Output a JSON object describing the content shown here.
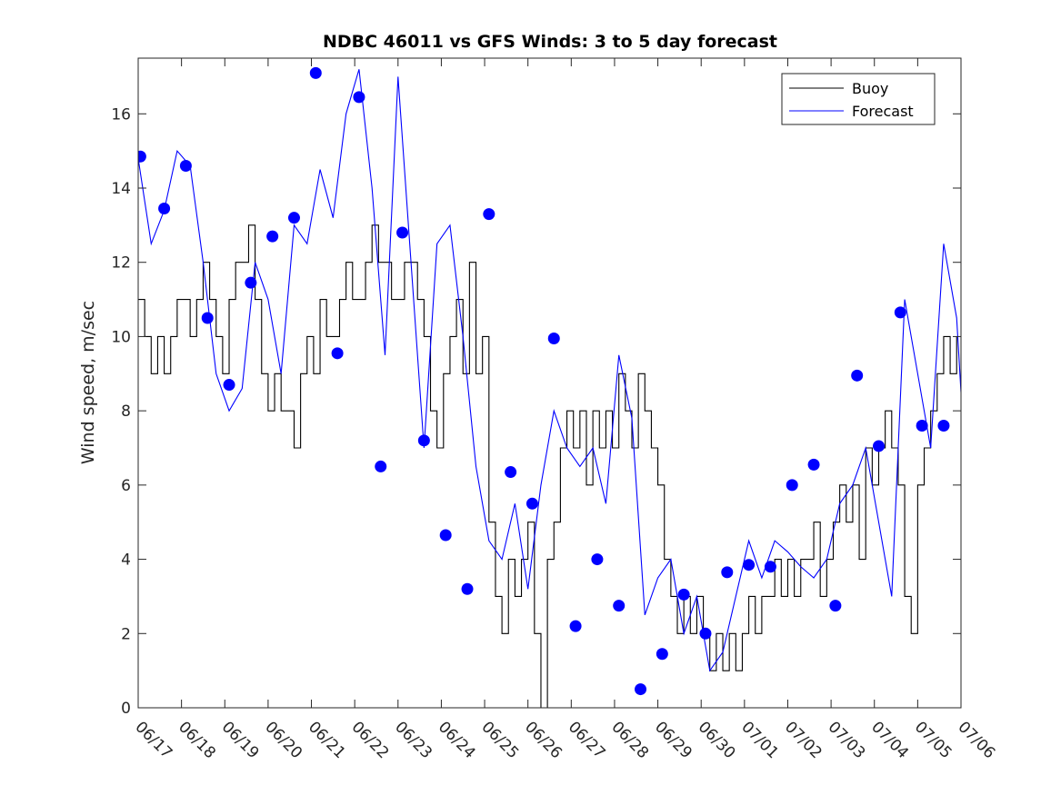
{
  "chart_data": {
    "type": "line",
    "title": "NDBC 46011 vs GFS Winds: 3 to 5 day forecast",
    "xlabel": "",
    "ylabel": "Wind speed, m/sec",
    "ylim": [
      0,
      17.5
    ],
    "yticks": [
      0,
      2,
      4,
      6,
      8,
      10,
      12,
      14,
      16
    ],
    "x_type": "date (mm/dd)",
    "xlim": [
      "06/17",
      "07/06"
    ],
    "xticks": [
      "06/17",
      "06/18",
      "06/19",
      "06/20",
      "06/21",
      "06/22",
      "06/23",
      "06/24",
      "06/25",
      "06/26",
      "06/27",
      "06/28",
      "06/29",
      "06/30",
      "07/01",
      "07/02",
      "07/03",
      "07/04",
      "07/05",
      "07/06"
    ],
    "legend_position": "top-right",
    "grid": false,
    "colors": {
      "buoy": "#000000",
      "forecast": "#0000ff",
      "axes": "#262626"
    },
    "series": [
      {
        "name": "Buoy",
        "color": "#000000",
        "style": "step-line",
        "x_day_offsets_from_06_17": [
          0,
          0.15,
          0.3,
          0.45,
          0.6,
          0.75,
          0.9,
          1.05,
          1.2,
          1.35,
          1.5,
          1.65,
          1.8,
          1.95,
          2.1,
          2.25,
          2.4,
          2.55,
          2.7,
          2.85,
          3.0,
          3.15,
          3.3,
          3.45,
          3.6,
          3.75,
          3.9,
          4.05,
          4.2,
          4.35,
          4.5,
          4.65,
          4.8,
          4.95,
          5.1,
          5.25,
          5.4,
          5.55,
          5.7,
          5.85,
          6.0,
          6.15,
          6.3,
          6.45,
          6.6,
          6.75,
          6.9,
          7.05,
          7.2,
          7.35,
          7.5,
          7.65,
          7.8,
          7.95,
          8.1,
          8.25,
          8.4,
          8.55,
          8.7,
          8.85,
          9.0,
          9.15,
          9.3,
          9.45,
          9.6,
          9.75,
          9.9,
          10.05,
          10.2,
          10.35,
          10.5,
          10.65,
          10.8,
          10.95,
          11.1,
          11.25,
          11.4,
          11.55,
          11.7,
          11.85,
          12.0,
          12.15,
          12.3,
          12.45,
          12.6,
          12.75,
          12.9,
          13.05,
          13.2,
          13.35,
          13.5,
          13.65,
          13.8,
          13.95,
          14.1,
          14.25,
          14.4,
          14.55,
          14.7,
          14.85,
          15.0,
          15.15,
          15.3,
          15.45,
          15.6,
          15.75,
          15.9,
          16.05,
          16.2,
          16.35,
          16.5,
          16.65,
          16.8,
          16.95,
          17.1,
          17.25,
          17.4,
          17.55,
          17.7,
          17.85,
          18.0,
          18.15,
          18.3,
          18.45,
          18.6,
          18.75,
          18.9
        ],
        "values": [
          11,
          10,
          9,
          10,
          9,
          10,
          11,
          11,
          10,
          11,
          12,
          11,
          10,
          9,
          11,
          12,
          12,
          13,
          11,
          9,
          8,
          9,
          8,
          8,
          7,
          9,
          10,
          9,
          11,
          10,
          10,
          11,
          12,
          11,
          11,
          12,
          13,
          12,
          12,
          11,
          11,
          12,
          12,
          11,
          10,
          8,
          7,
          9,
          10,
          11,
          9,
          12,
          9,
          10,
          5,
          3,
          2,
          4,
          3,
          4,
          5,
          2,
          0,
          4,
          5,
          7,
          8,
          7,
          8,
          6,
          8,
          7,
          8,
          7,
          9,
          8,
          7,
          9,
          8,
          7,
          6,
          4,
          3,
          2,
          3,
          2,
          3,
          2,
          1,
          2,
          1,
          2,
          1,
          2,
          3,
          2,
          3,
          3,
          4,
          3,
          4,
          3,
          4,
          4,
          5,
          3,
          4,
          5,
          6,
          5,
          6,
          4,
          7,
          6,
          7,
          8,
          7,
          6,
          3,
          2,
          6,
          7,
          8,
          9,
          10,
          9,
          10,
          9,
          8
        ]
      },
      {
        "name": "Forecast",
        "color": "#0000ff",
        "style": "line",
        "x_day_offsets_from_06_17": [
          0,
          0.3,
          0.6,
          0.9,
          1.2,
          1.5,
          1.8,
          2.1,
          2.4,
          2.7,
          3.0,
          3.3,
          3.6,
          3.9,
          4.2,
          4.5,
          4.8,
          5.1,
          5.4,
          5.7,
          6.0,
          6.3,
          6.6,
          6.9,
          7.2,
          7.5,
          7.8,
          8.1,
          8.4,
          8.7,
          9.0,
          9.3,
          9.6,
          9.9,
          10.2,
          10.5,
          10.8,
          11.1,
          11.4,
          11.7,
          12.0,
          12.3,
          12.6,
          12.9,
          13.2,
          13.5,
          13.8,
          14.1,
          14.4,
          14.7,
          15.0,
          15.3,
          15.6,
          15.9,
          16.2,
          16.5,
          16.8,
          17.1,
          17.4,
          17.7,
          18.0,
          18.3,
          18.6,
          18.9,
          19.0
        ],
        "values": [
          14.8,
          12.5,
          13.4,
          15.0,
          14.6,
          12.0,
          9.0,
          8.0,
          8.6,
          12.0,
          11.0,
          9.0,
          13.0,
          12.5,
          14.5,
          13.2,
          16.0,
          17.2,
          14.0,
          9.5,
          17.0,
          12.0,
          7.0,
          12.5,
          13.0,
          10.0,
          6.5,
          4.5,
          4.0,
          5.5,
          3.2,
          6.0,
          8.0,
          7.0,
          6.5,
          7.0,
          5.5,
          9.5,
          7.8,
          2.5,
          3.5,
          4.0,
          2.0,
          3.0,
          1.0,
          1.5,
          3.0,
          4.5,
          3.5,
          4.5,
          4.2,
          3.8,
          3.5,
          4.0,
          5.5,
          6.0,
          7.0,
          5.0,
          3.0,
          11.0,
          9.0,
          7.0,
          12.5,
          10.5,
          8.5
        ]
      },
      {
        "name": "",
        "color": "#0000ff",
        "style": "markers",
        "x_day_offsets_from_06_17": [
          0.05,
          0.6,
          1.1,
          1.6,
          2.1,
          2.6,
          3.1,
          3.6,
          4.1,
          4.6,
          5.1,
          5.6,
          6.1,
          6.6,
          7.1,
          7.6,
          8.1,
          8.6,
          9.1,
          9.6,
          10.1,
          10.6,
          11.1,
          11.6,
          12.1,
          12.6,
          13.1,
          13.6,
          14.1,
          14.6,
          15.1,
          15.6,
          16.1,
          16.6,
          17.1,
          17.6,
          18.1,
          18.6
        ],
        "values": [
          14.85,
          13.45,
          14.6,
          10.5,
          8.7,
          11.45,
          12.7,
          13.2,
          17.1,
          9.55,
          16.45,
          6.5,
          12.8,
          7.2,
          4.65,
          3.2,
          13.3,
          6.35,
          5.5,
          9.95,
          2.2,
          4.0,
          2.75,
          0.5,
          1.45,
          3.05,
          2.0,
          3.65,
          3.85,
          3.8,
          6.0,
          6.55,
          2.75,
          8.95,
          7.05,
          10.65,
          7.6,
          7.6
        ]
      }
    ]
  }
}
